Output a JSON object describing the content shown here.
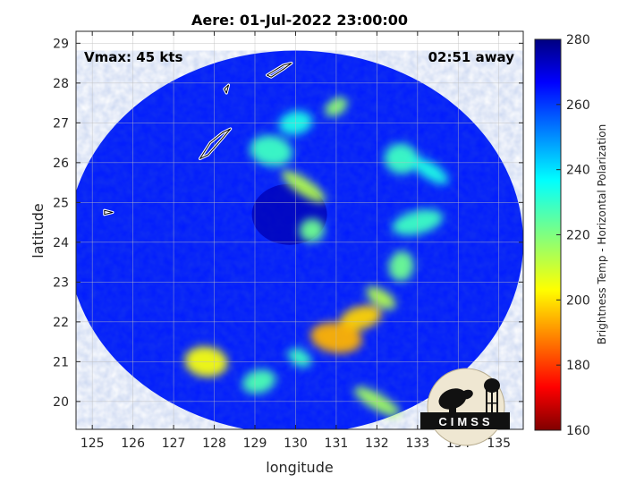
{
  "chart_data": {
    "type": "heatmap",
    "title": "Aere: 01-Jul-2022 23:00:00",
    "xlabel": "longitude",
    "ylabel": "latitude",
    "xlim": [
      124.6,
      135.6
    ],
    "ylim": [
      19.3,
      29.3
    ],
    "xticks": [
      125,
      126,
      127,
      128,
      129,
      130,
      131,
      132,
      133,
      134,
      135
    ],
    "yticks": [
      20,
      21,
      22,
      23,
      24,
      25,
      26,
      27,
      28,
      29
    ],
    "grid": true,
    "annotations": {
      "vmax": "Vmax: 45 kts",
      "time_away": "02:51 away"
    },
    "colorbar": {
      "label": "Brightness Temp - Horizontal Polarization",
      "min": 160,
      "max": 280,
      "ticks": [
        160,
        180,
        200,
        220,
        240,
        260,
        280
      ],
      "colormap": "jet"
    },
    "swath": {
      "center_lon": 130.0,
      "center_lat": 24.0,
      "radius_deg": 5.6
    },
    "storm_center": {
      "lon": 129.85,
      "lat": 24.7
    },
    "rainbands": [
      {
        "lon": 131.0,
        "lat": 27.4,
        "tb": 218
      },
      {
        "lon": 130.0,
        "lat": 27.0,
        "tb": 232
      },
      {
        "lon": 129.4,
        "lat": 26.3,
        "tb": 228
      },
      {
        "lon": 130.2,
        "lat": 25.4,
        "tb": 214
      },
      {
        "lon": 130.4,
        "lat": 24.3,
        "tb": 222
      },
      {
        "lon": 132.6,
        "lat": 26.1,
        "tb": 228
      },
      {
        "lon": 133.3,
        "lat": 25.8,
        "tb": 232
      },
      {
        "lon": 133.0,
        "lat": 24.5,
        "tb": 228
      },
      {
        "lon": 132.6,
        "lat": 23.4,
        "tb": 222
      },
      {
        "lon": 132.1,
        "lat": 22.6,
        "tb": 214
      },
      {
        "lon": 131.6,
        "lat": 22.1,
        "tb": 200
      },
      {
        "lon": 131.0,
        "lat": 21.6,
        "tb": 196
      },
      {
        "lon": 130.1,
        "lat": 21.1,
        "tb": 228
      },
      {
        "lon": 129.1,
        "lat": 20.5,
        "tb": 226
      },
      {
        "lon": 127.8,
        "lat": 21.0,
        "tb": 206
      },
      {
        "lon": 132.0,
        "lat": 20.0,
        "tb": 216
      }
    ],
    "islands": [
      [
        [
          129.3,
          28.2
        ],
        [
          129.7,
          28.45
        ],
        [
          129.9,
          28.5
        ],
        [
          129.7,
          28.35
        ],
        [
          129.4,
          28.15
        ]
      ],
      [
        [
          128.25,
          27.85
        ],
        [
          128.35,
          27.95
        ],
        [
          128.3,
          27.75
        ]
      ],
      [
        [
          127.65,
          26.1
        ],
        [
          127.9,
          26.5
        ],
        [
          128.2,
          26.75
        ],
        [
          128.4,
          26.85
        ],
        [
          128.15,
          26.55
        ],
        [
          127.85,
          26.2
        ]
      ],
      [
        [
          125.3,
          24.8
        ],
        [
          125.5,
          24.75
        ],
        [
          125.3,
          24.7
        ]
      ]
    ],
    "logo": {
      "text": "CIMSS"
    }
  }
}
